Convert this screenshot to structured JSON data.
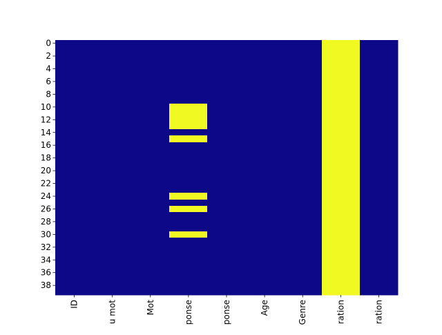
{
  "chart_data": {
    "type": "heatmap",
    "title": "",
    "xlabel": "",
    "ylabel": "",
    "x_labels": [
      "ID",
      "u mot",
      "Mot",
      "ponse",
      "ponse",
      "Age",
      "Genre",
      "ration",
      "ration"
    ],
    "rows": 40,
    "y_tick_labels": [
      "0",
      "2",
      "4",
      "6",
      "8",
      "10",
      "12",
      "14",
      "16",
      "18",
      "20",
      "22",
      "24",
      "26",
      "28",
      "30",
      "32",
      "34",
      "36",
      "38"
    ],
    "y_tick_rows": [
      0,
      2,
      4,
      6,
      8,
      10,
      12,
      14,
      16,
      18,
      20,
      22,
      24,
      26,
      28,
      30,
      32,
      34,
      36,
      38
    ],
    "value_colors": {
      "false": "#0d0887",
      "true": "#f0f921"
    },
    "colorbar": false,
    "true_cells": [
      {
        "column": 3,
        "rows": [
          10,
          11,
          12,
          13,
          15,
          24,
          26,
          30
        ]
      },
      {
        "column": 7,
        "rows": "all"
      }
    ]
  }
}
